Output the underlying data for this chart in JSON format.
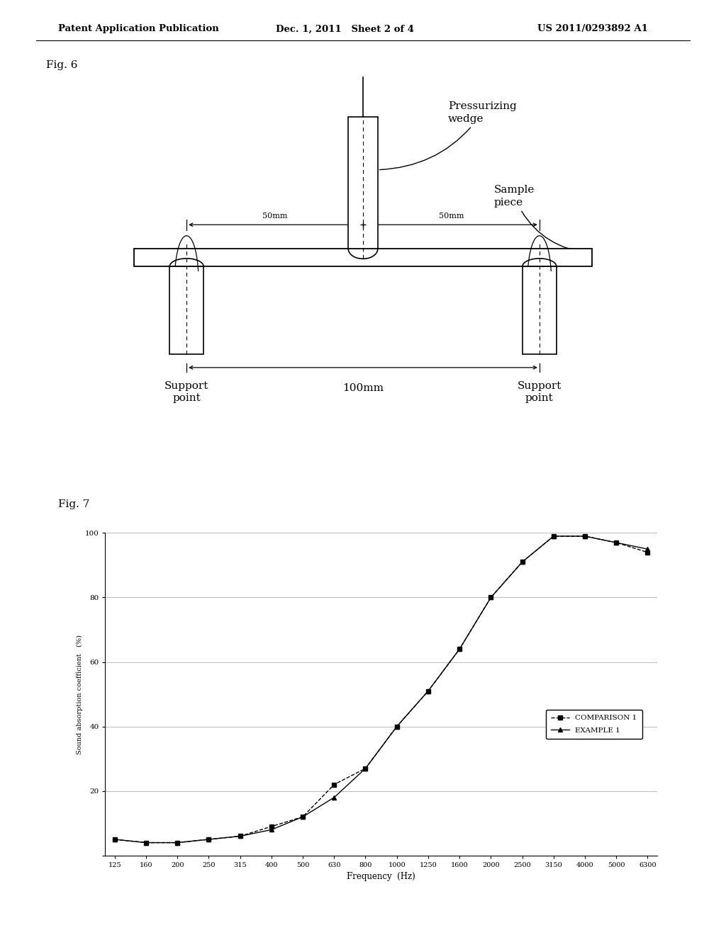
{
  "header_left": "Patent Application Publication",
  "header_mid": "Dec. 1, 2011   Sheet 2 of 4",
  "header_right": "US 2011/0293892 A1",
  "fig6_label": "Fig. 6",
  "fig7_label": "Fig. 7",
  "pressurizing_wedge_label": "Pressurizing\nwedge",
  "sample_piece_label": "Sample\npiece",
  "support_point_left_label": "Support\npoint",
  "support_point_right_label": "Support\npoint",
  "dim_50mm_left": "50mm",
  "dim_50mm_right": "50mm",
  "dim_100mm": "100mm",
  "freq_labels": [
    "125",
    "160",
    "200",
    "250",
    "315",
    "400",
    "500",
    "630",
    "800",
    "1000",
    "1250",
    "1600",
    "2000",
    "2500",
    "3150",
    "4000",
    "5000",
    "6300"
  ],
  "comparison1_y": [
    5,
    4,
    4,
    5,
    6,
    9,
    12,
    22,
    27,
    40,
    51,
    64,
    80,
    91,
    99,
    99,
    97,
    94
  ],
  "example1_y": [
    5,
    4,
    4,
    5,
    6,
    8,
    12,
    18,
    27,
    40,
    51,
    64,
    80,
    91,
    99,
    99,
    97,
    95
  ],
  "ylabel": "Sound absorption coefficient   (%)",
  "xlabel": "Frequency  (Hz)",
  "legend_comparison": "COMPARISON 1",
  "legend_example": "EXAMPLE 1",
  "ylim": [
    0,
    100
  ],
  "yticks": [
    0,
    20,
    40,
    60,
    80,
    100
  ],
  "background": "#ffffff"
}
